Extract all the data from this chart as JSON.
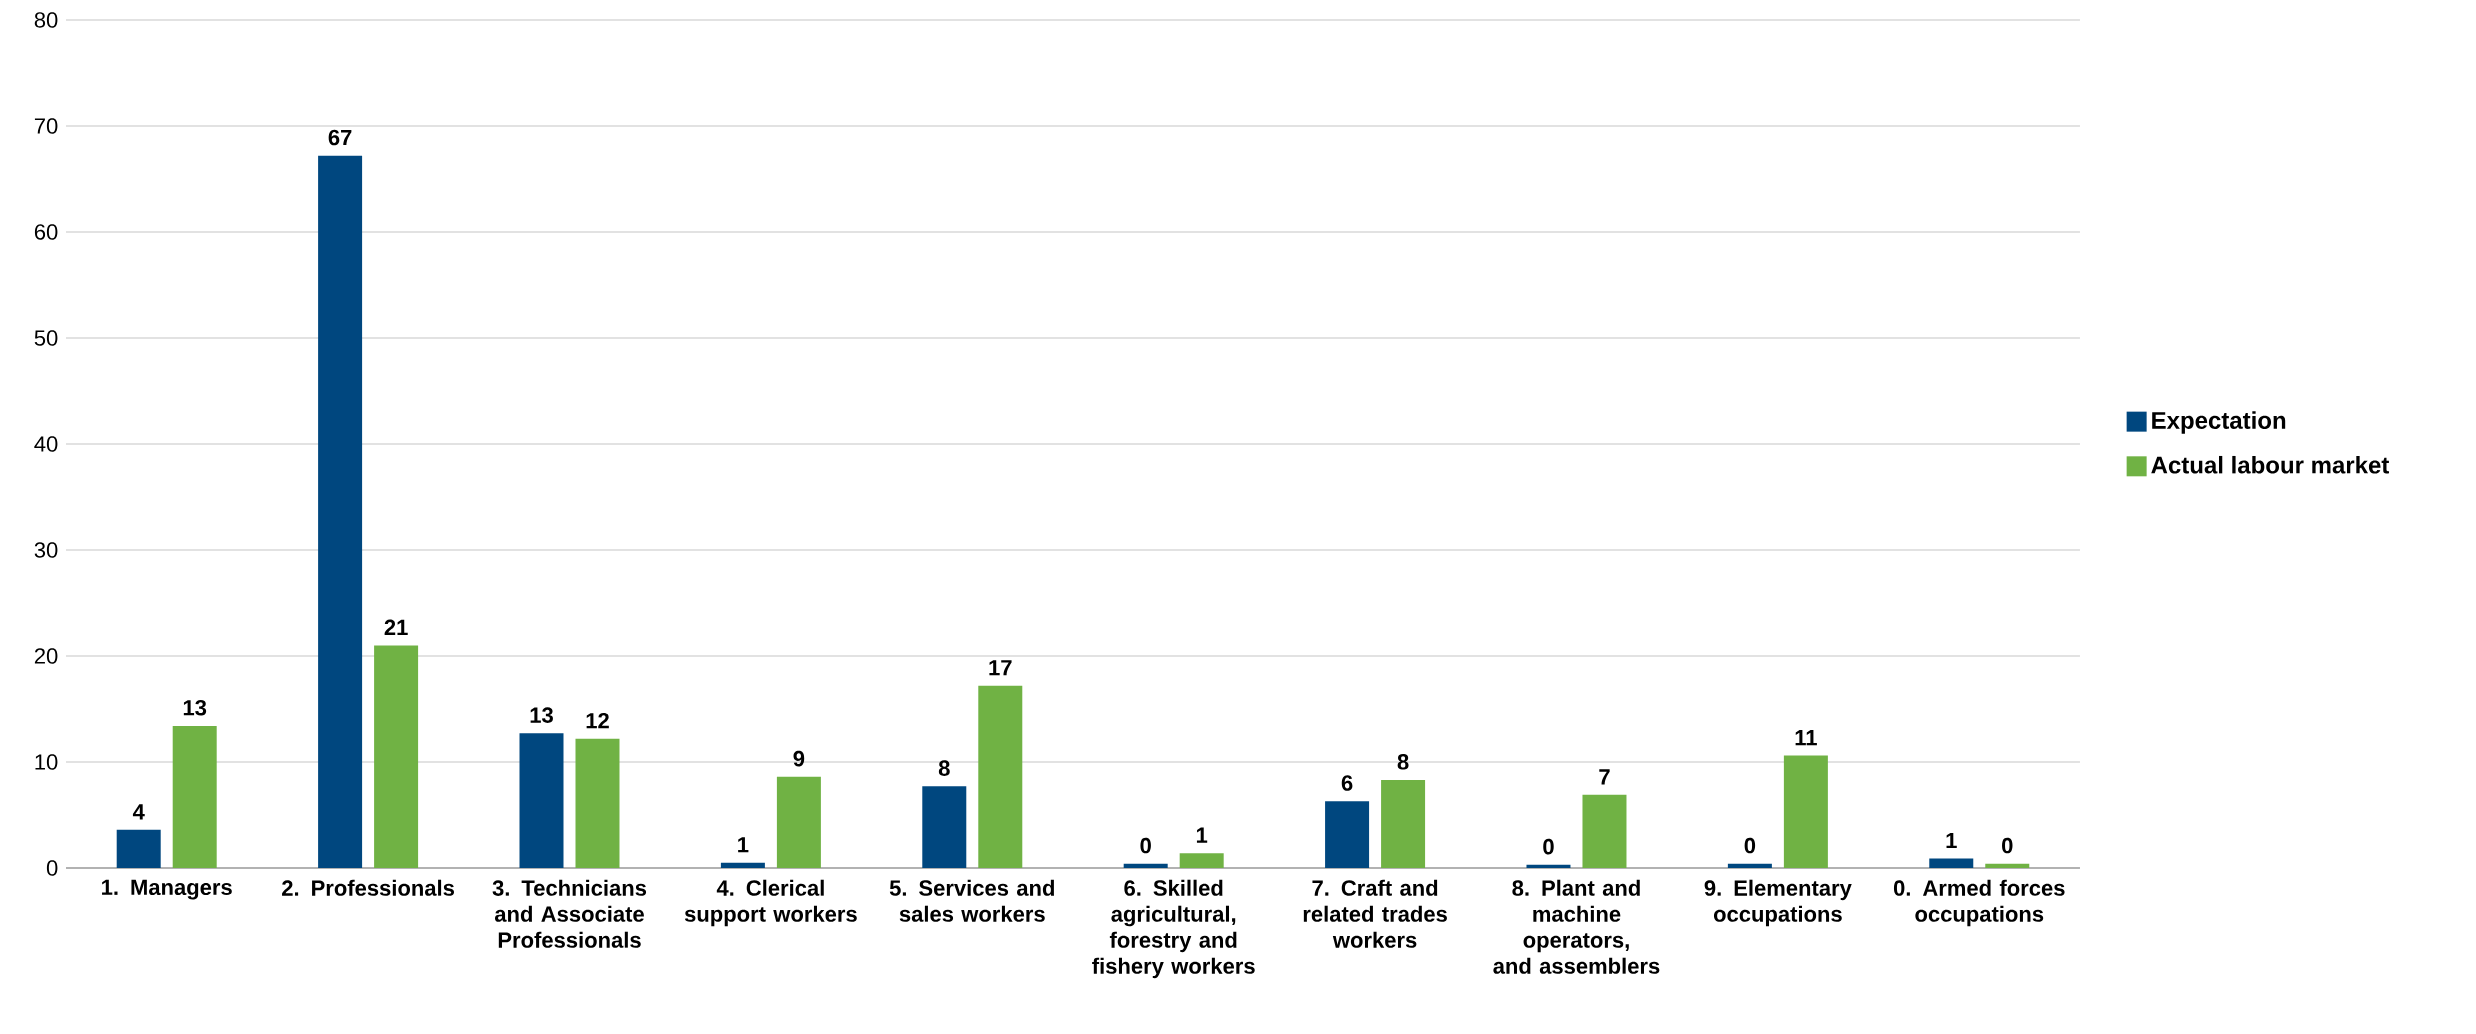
{
  "chart_data": {
    "type": "bar",
    "categories": [
      "1. Managers",
      "2. Professionals",
      "3. Technicians and Associate Professionals",
      "4. Clerical support workers",
      "5. Services and sales workers",
      "6. Skilled agricultural, forestry and fishery workers",
      "7. Craft and related trades workers",
      "8.  Plant and machine operators, and assemblers",
      "9. Elementary occupations",
      "0. Armed forces occupations"
    ],
    "series": [
      {
        "name": "Expectation",
        "color": "#00477f",
        "values": [
          3.6,
          67.2,
          12.7,
          0.5,
          7.7,
          0.4,
          6.3,
          0.3,
          0.4,
          0.9
        ],
        "value_labels": [
          "4",
          "67",
          "13",
          "1",
          "8",
          "0",
          "6",
          "0",
          "0",
          "1"
        ]
      },
      {
        "name": "Actual labour market",
        "color": "#70b244",
        "values": [
          13.4,
          21.0,
          12.2,
          8.6,
          17.2,
          1.4,
          8.3,
          6.9,
          10.6,
          0.4
        ],
        "value_labels": [
          "13",
          "21",
          "12",
          "9",
          "17",
          "1",
          "8",
          "7",
          "11",
          "0"
        ]
      }
    ],
    "ylim": [
      0,
      80
    ],
    "yticks": [
      0,
      10,
      20,
      30,
      40,
      50,
      60,
      70,
      80
    ],
    "grid": "y",
    "legend": "right"
  }
}
